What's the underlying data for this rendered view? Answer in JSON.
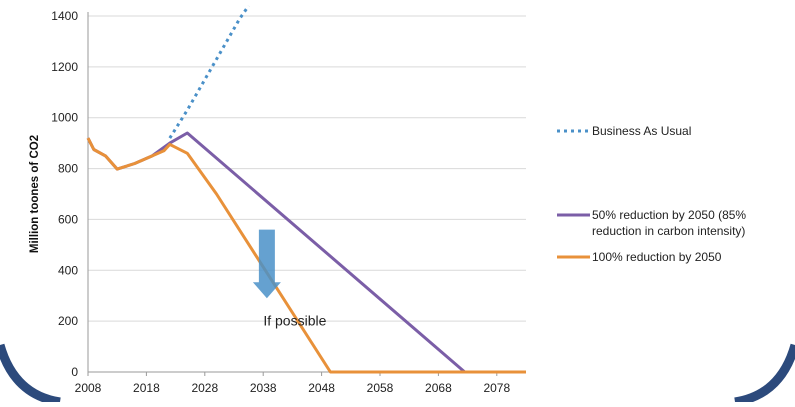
{
  "chart_data": {
    "type": "line",
    "title": "",
    "xlabel": "",
    "ylabel": "Million toones of CO2",
    "xlim": [
      2008,
      2083
    ],
    "ylim": [
      0,
      1400
    ],
    "xticks": [
      2008,
      2018,
      2028,
      2038,
      2048,
      2058,
      2068,
      2078
    ],
    "yticks": [
      0,
      200,
      400,
      600,
      800,
      1000,
      1200,
      1400
    ],
    "grid": "horizontal",
    "legend_position": "right",
    "series": [
      {
        "name": "Business As Usual",
        "style": "dotted",
        "color": "#4a90c8",
        "points": [
          [
            2022,
            920
          ],
          [
            2025,
            1030
          ],
          [
            2028,
            1150
          ],
          [
            2031,
            1270
          ],
          [
            2034,
            1390
          ],
          [
            2035.5,
            1440
          ]
        ]
      },
      {
        "name": "50% reduction by 2050 (85% reduction in carbon intensity)",
        "legend_lines": [
          "50% reduction by 2050 (85%",
          "reduction in carbon intensity)"
        ],
        "style": "solid",
        "color": "#7b5ea7",
        "points": [
          [
            2008,
            920
          ],
          [
            2009,
            875
          ],
          [
            2011,
            850
          ],
          [
            2013,
            798
          ],
          [
            2016,
            820
          ],
          [
            2019,
            850
          ],
          [
            2022,
            900
          ],
          [
            2025,
            940
          ],
          [
            2072.5,
            0
          ],
          [
            2083,
            0
          ]
        ]
      },
      {
        "name": "100% reduction by 2050",
        "style": "solid",
        "color": "#e8913a",
        "points": [
          [
            2008,
            920
          ],
          [
            2009,
            875
          ],
          [
            2011,
            850
          ],
          [
            2013,
            798
          ],
          [
            2016,
            820
          ],
          [
            2019,
            850
          ],
          [
            2021,
            870
          ],
          [
            2022,
            895
          ],
          [
            2025,
            860
          ],
          [
            2030,
            700
          ],
          [
            2049.5,
            0
          ],
          [
            2083,
            0
          ]
        ]
      }
    ],
    "annotations": [
      {
        "text": "If possible",
        "x": 2040,
        "y": 230,
        "arrow": {
          "from_y": 560,
          "to_y": 290,
          "color": "#4a90c8"
        }
      }
    ]
  },
  "decor": {
    "frame_color": "#2c4a7c"
  }
}
